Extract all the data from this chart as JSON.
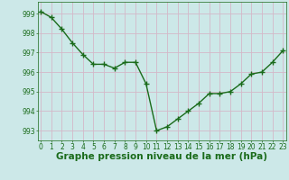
{
  "x": [
    0,
    1,
    2,
    3,
    4,
    5,
    6,
    7,
    8,
    9,
    10,
    11,
    12,
    13,
    14,
    15,
    16,
    17,
    18,
    19,
    20,
    21,
    22,
    23
  ],
  "y": [
    999.1,
    998.8,
    998.2,
    997.5,
    996.9,
    996.4,
    996.4,
    996.2,
    996.5,
    996.5,
    995.4,
    993.0,
    993.2,
    993.6,
    994.0,
    994.4,
    994.9,
    994.9,
    995.0,
    995.4,
    995.9,
    996.0,
    996.5,
    997.1
  ],
  "line_color": "#1a6b1a",
  "marker": "+",
  "marker_size": 4,
  "bg_color": "#cce8e8",
  "grid_color": "#b8d4d4",
  "xlabel": "Graphe pression niveau de la mer (hPa)",
  "xlabel_fontsize": 7.5,
  "ylim": [
    992.5,
    999.6
  ],
  "yticks": [
    993,
    994,
    995,
    996,
    997,
    998,
    999
  ],
  "xticks": [
    0,
    1,
    2,
    3,
    4,
    5,
    6,
    7,
    8,
    9,
    10,
    11,
    12,
    13,
    14,
    15,
    16,
    17,
    18,
    19,
    20,
    21,
    22,
    23
  ],
  "tick_fontsize": 5.5,
  "line_width": 1.0
}
